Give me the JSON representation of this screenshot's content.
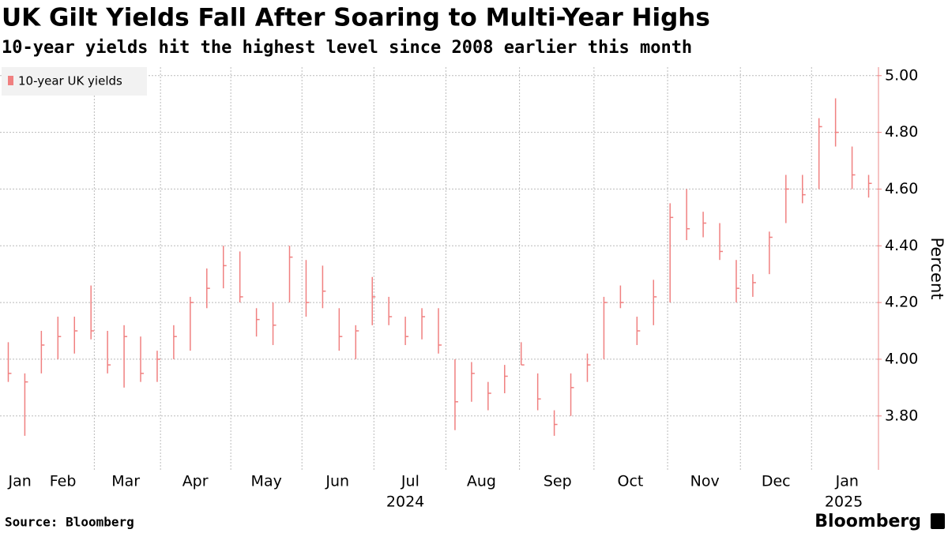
{
  "chart_data": {
    "type": "ohlc",
    "title": "UK Gilt Yields Fall After Soaring to Multi-Year Highs",
    "subtitle": "10-year yields hit the highest level since 2008 earlier this month",
    "y_label": "Percent",
    "source": "Source: Bloomberg",
    "brand": "Bloomberg",
    "categories": [
      null,
      null,
      null,
      null,
      null,
      null,
      null,
      null,
      null,
      null,
      null,
      null,
      null,
      null,
      null,
      null,
      null,
      null,
      null,
      null,
      null,
      null,
      null,
      null,
      null,
      null,
      null,
      null,
      null,
      null,
      null,
      null,
      null,
      null,
      null,
      null,
      null,
      null,
      null,
      null,
      null,
      null,
      null,
      null,
      null,
      null,
      null,
      null,
      null,
      null,
      null,
      null,
      null
    ],
    "series": [
      {
        "name": "10-year UK yields",
        "color": "#f08080",
        "low": [
          3.92,
          3.73,
          3.95,
          4.0,
          4.02,
          4.07,
          3.95,
          3.9,
          3.92,
          3.92,
          4.0,
          4.03,
          4.18,
          4.25,
          4.2,
          4.08,
          4.05,
          4.2,
          4.15,
          4.18,
          4.03,
          4.0,
          4.12,
          4.12,
          4.05,
          4.07,
          4.02,
          3.75,
          3.85,
          3.82,
          3.88,
          3.98,
          3.82,
          3.73,
          3.8,
          3.92,
          4.0,
          4.18,
          4.05,
          4.12,
          4.2,
          4.42,
          4.43,
          4.35,
          4.2,
          4.22,
          4.3,
          4.48,
          4.55,
          4.6,
          4.75,
          4.6,
          4.57
        ],
        "high": [
          4.06,
          3.95,
          4.1,
          4.15,
          4.15,
          4.26,
          4.1,
          4.12,
          4.08,
          4.03,
          4.12,
          4.22,
          4.32,
          4.4,
          4.38,
          4.18,
          4.2,
          4.4,
          4.35,
          4.33,
          4.18,
          4.12,
          4.29,
          4.22,
          4.15,
          4.18,
          4.18,
          4.0,
          3.99,
          3.92,
          3.98,
          4.06,
          3.95,
          3.82,
          3.95,
          4.02,
          4.22,
          4.26,
          4.15,
          4.28,
          4.55,
          4.6,
          4.52,
          4.48,
          4.35,
          4.3,
          4.45,
          4.65,
          4.65,
          4.85,
          4.92,
          4.75,
          4.65
        ],
        "close": [
          3.95,
          3.92,
          4.05,
          4.08,
          4.1,
          4.1,
          3.98,
          4.08,
          3.95,
          4.0,
          4.08,
          4.2,
          4.25,
          4.33,
          4.22,
          4.14,
          4.12,
          4.36,
          4.2,
          4.24,
          4.08,
          4.1,
          4.22,
          4.15,
          4.08,
          4.15,
          4.05,
          3.85,
          3.95,
          3.88,
          3.94,
          3.98,
          3.86,
          3.77,
          3.9,
          3.98,
          4.2,
          4.2,
          4.1,
          4.22,
          4.5,
          4.46,
          4.48,
          4.38,
          4.25,
          4.27,
          4.43,
          4.6,
          4.58,
          4.82,
          4.8,
          4.65,
          4.62
        ]
      }
    ],
    "xticks": [
      {
        "value": 0.7,
        "label": "Jan"
      },
      {
        "value": 3.3,
        "label": "Feb"
      },
      {
        "value": 7.1,
        "label": "Mar"
      },
      {
        "value": 11.3,
        "label": "Apr"
      },
      {
        "value": 15.6,
        "label": "May"
      },
      {
        "value": 19.9,
        "label": "Jun"
      },
      {
        "value": 24.3,
        "label": "Jul"
      },
      {
        "value": 28.6,
        "label": "Aug"
      },
      {
        "value": 33.2,
        "label": "Sep"
      },
      {
        "value": 37.6,
        "label": "Oct"
      },
      {
        "value": 42.1,
        "label": "Nov"
      },
      {
        "value": 46.4,
        "label": "Dec"
      },
      {
        "value": 50.7,
        "label": "Jan"
      }
    ],
    "year_labels": [
      {
        "value": 24.0,
        "label": "2024"
      },
      {
        "value": 50.5,
        "label": "2025"
      }
    ],
    "ylim": [
      3.61,
      5.03
    ],
    "yticks": [
      {
        "value": 3.8,
        "label": "3.80"
      },
      {
        "value": 4.0,
        "label": "4.00"
      },
      {
        "value": 4.2,
        "label": "4.20"
      },
      {
        "value": 4.4,
        "label": "4.40"
      },
      {
        "value": 4.6,
        "label": "4.60"
      },
      {
        "value": 4.8,
        "label": "4.80"
      },
      {
        "value": 5.0,
        "label": "5.00"
      }
    ],
    "grid": true,
    "legend": "top-left"
  }
}
